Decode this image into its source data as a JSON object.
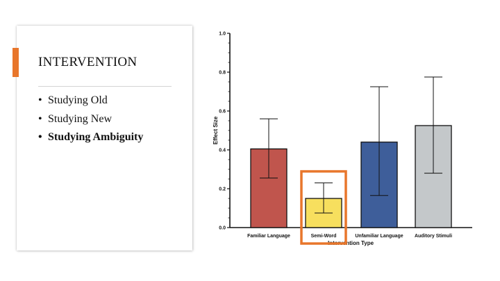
{
  "slide": {
    "title": "INTERVENTION",
    "bullets": [
      {
        "text": "Studying Old",
        "bold": false
      },
      {
        "text": "Studying New",
        "bold": false
      },
      {
        "text": "Studying Ambiguity",
        "bold": true
      }
    ],
    "bullet_glyph": "•"
  },
  "colors": {
    "accent": "#e8762b",
    "highlight_box": "#e8762b"
  },
  "chart_data": {
    "type": "bar",
    "title": "",
    "xlabel": "Intervention Type",
    "ylabel": "Effect Size",
    "ylim": [
      0,
      1.0
    ],
    "yticks": [
      "0.0",
      "0.2",
      "0.4",
      "0.6",
      "0.8",
      "1.0"
    ],
    "categories": [
      "Familiar Language",
      "Semi-Word",
      "Unfamiliar Language",
      "Auditory Stimuli"
    ],
    "values": [
      0.405,
      0.15,
      0.44,
      0.525
    ],
    "error_low": [
      0.255,
      0.075,
      0.165,
      0.28
    ],
    "error_high": [
      0.56,
      0.23,
      0.725,
      0.775
    ],
    "bar_colors": [
      "#c0554d",
      "#f7df5e",
      "#3e5e9a",
      "#c4c8ca"
    ],
    "highlighted_category": "Semi-Word"
  }
}
